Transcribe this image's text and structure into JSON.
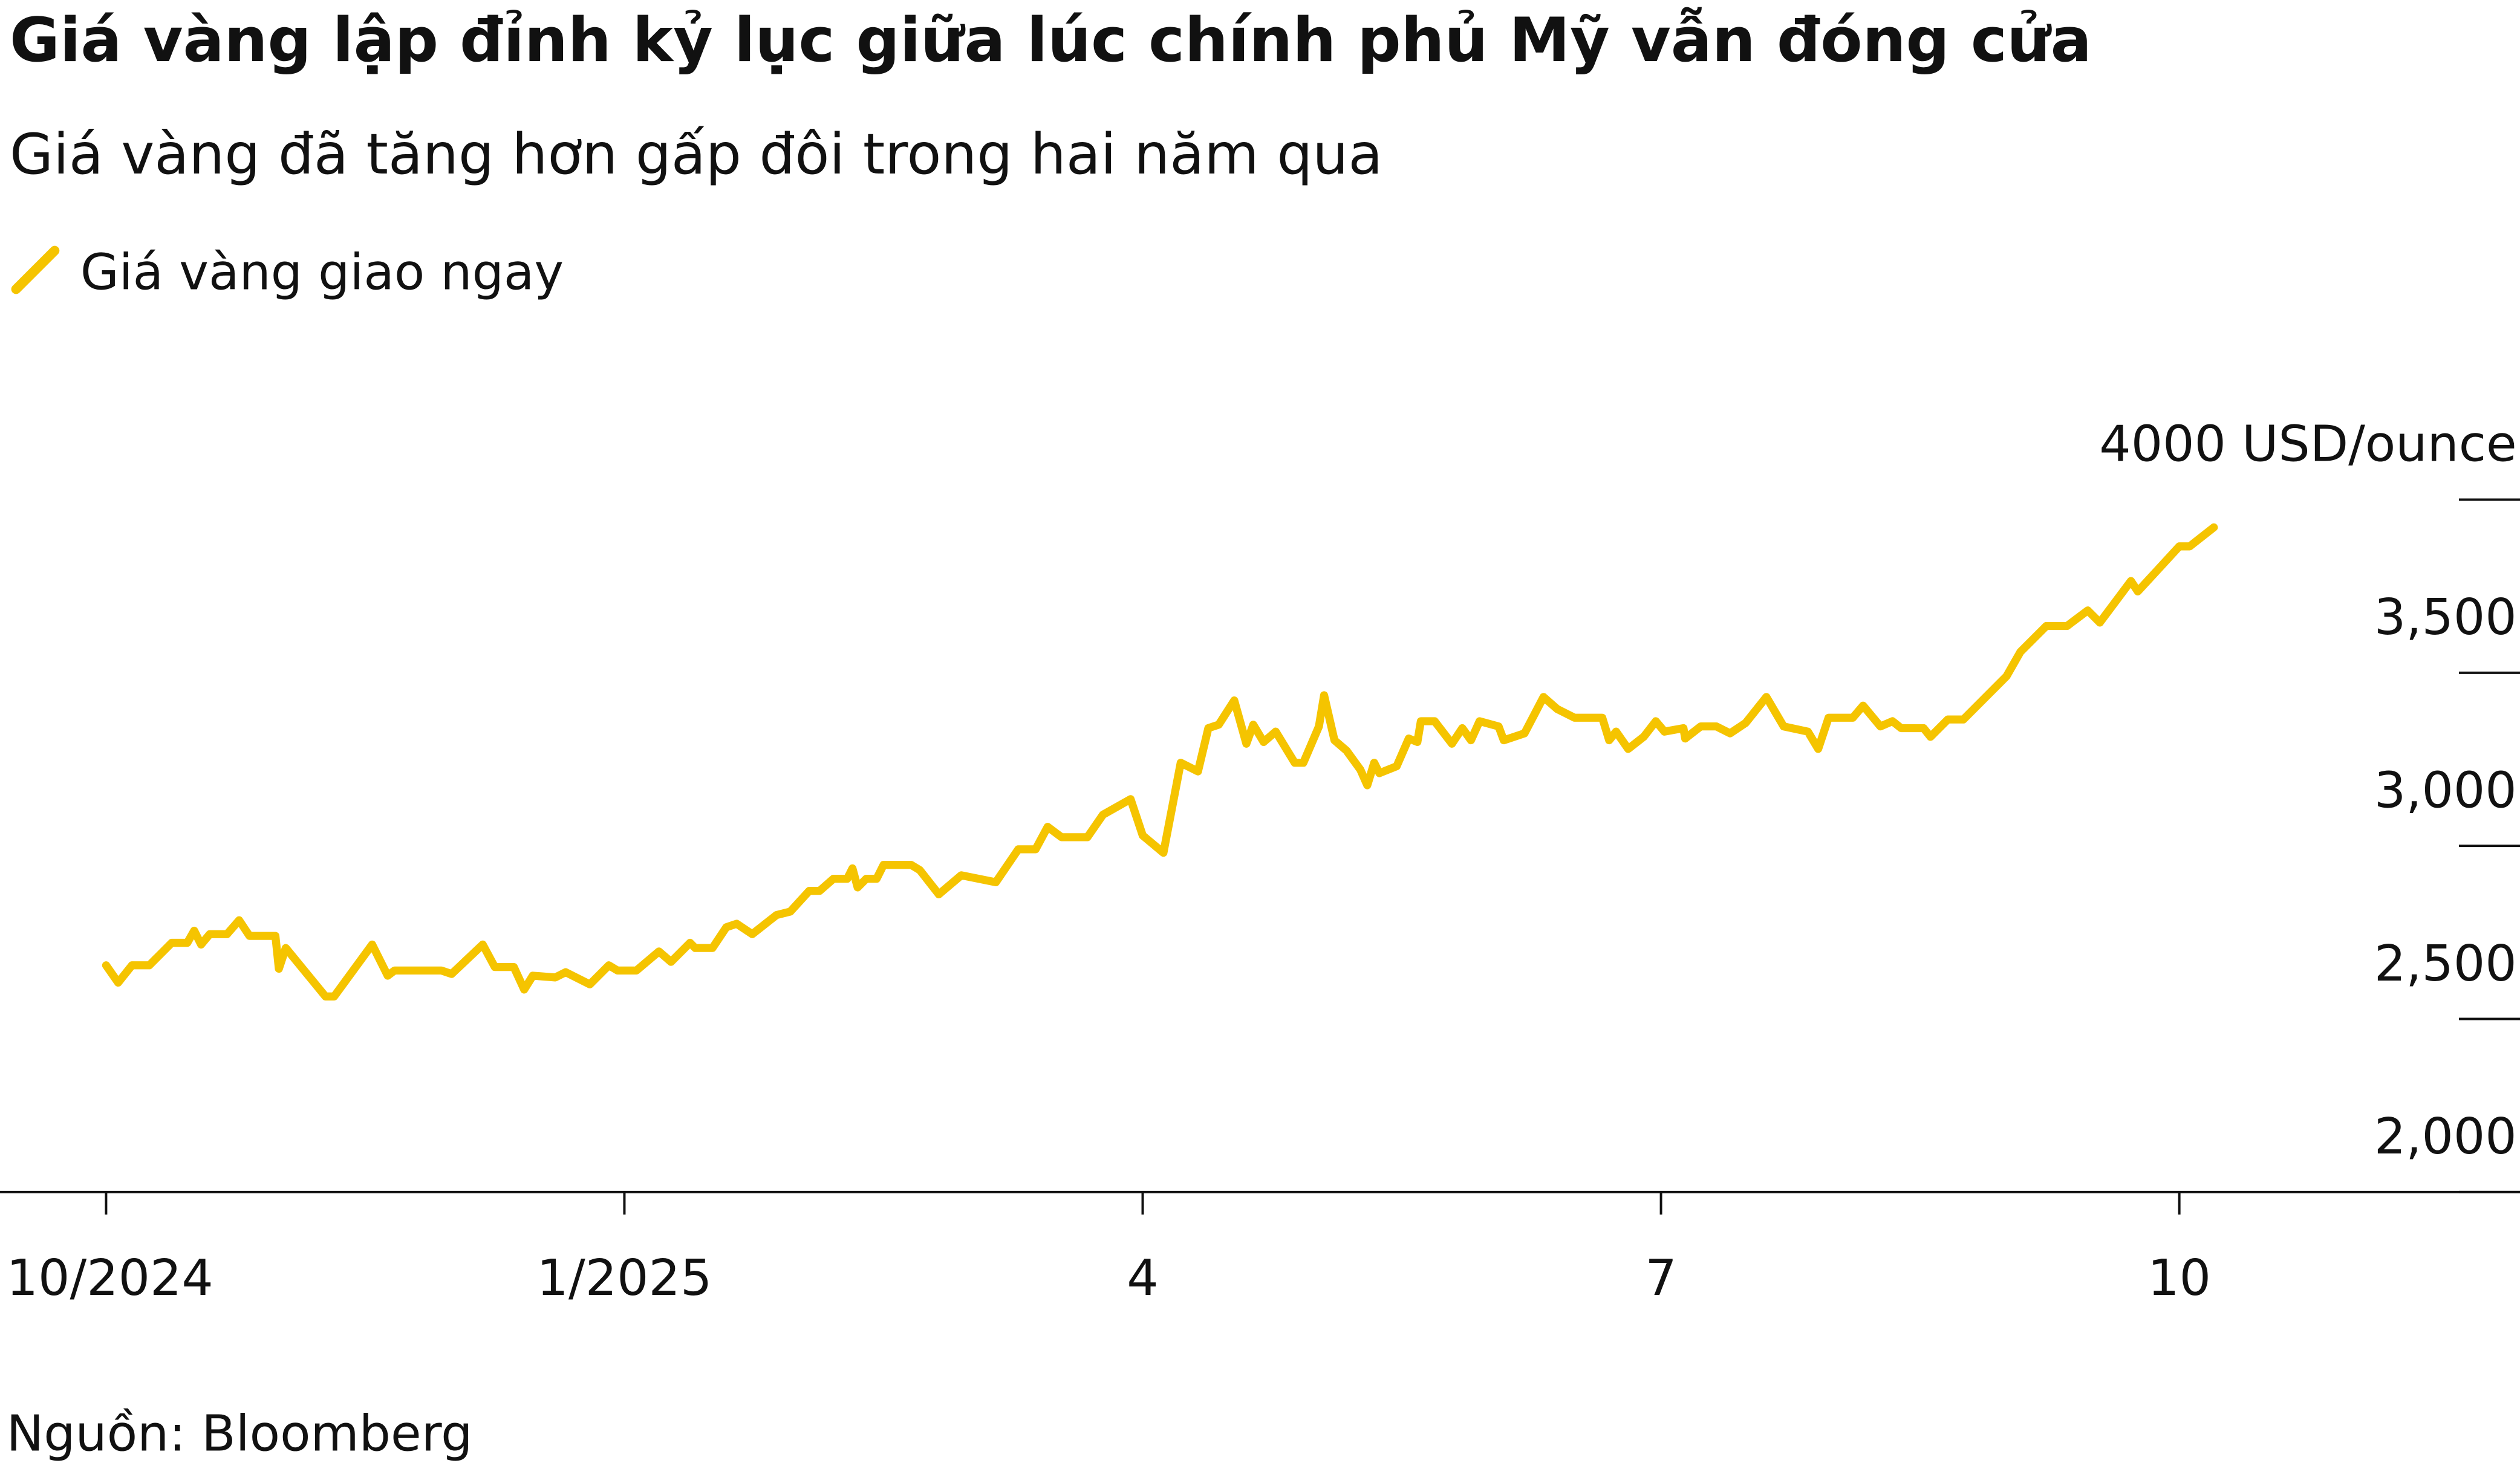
{
  "chart_data": {
    "type": "line",
    "title": "Giá vàng lập đỉnh kỷ lục giữa lúc chính phủ Mỹ vẫn đóng cửa",
    "subtitle": "Giá vàng đã tăng hơn gấp đôi trong hai năm qua",
    "source": "Nguồn: Bloomberg",
    "x": [
      0.0,
      0.07,
      0.15,
      0.25,
      0.38,
      0.47,
      0.51,
      0.55,
      0.6,
      0.7,
      0.77,
      0.83,
      0.98,
      1.0,
      1.04,
      1.27,
      1.32,
      1.54,
      1.63,
      1.67,
      1.94,
      2.0,
      2.18,
      2.25,
      2.36,
      2.42,
      2.47,
      2.6,
      2.66,
      2.8,
      2.91,
      2.96,
      3.07,
      3.2,
      3.27,
      3.38,
      3.41,
      3.51,
      3.59,
      3.65,
      3.74,
      3.88,
      3.96,
      4.07,
      4.13,
      4.21,
      4.29,
      4.32,
      4.35,
      4.4,
      4.46,
      4.5,
      4.66,
      4.71,
      4.82,
      4.95,
      5.15,
      5.28,
      5.38,
      5.45,
      5.53,
      5.68,
      5.77,
      5.93,
      6.0,
      6.12,
      6.22,
      6.32,
      6.38,
      6.44,
      6.53,
      6.6,
      6.64,
      6.7,
      6.77,
      6.88,
      6.93,
      7.02,
      7.05,
      7.11,
      7.18,
      7.26,
      7.3,
      7.34,
      7.37,
      7.47,
      7.54,
      7.59,
      7.61,
      7.69,
      7.79,
      7.85,
      7.9,
      7.95,
      8.06,
      8.09,
      8.21,
      8.32,
      8.4,
      8.5,
      8.66,
      8.7,
      8.74,
      8.81,
      8.9,
      8.97,
      9.02,
      9.13,
      9.14,
      9.23,
      9.32,
      9.4,
      9.49,
      9.61,
      9.71,
      9.85,
      9.91,
      9.97,
      10.11,
      10.17,
      10.27,
      10.34,
      10.39,
      10.52,
      10.56,
      10.66,
      10.75,
      11.0,
      11.08,
      11.23,
      11.35,
      11.47,
      11.54,
      11.72,
      11.76,
      12.0,
      12.06,
      12.2
    ],
    "series": [
      {
        "name": "Giá vàng giao ngay",
        "color": "#f5c400",
        "values": [
          2655,
          2605,
          2655,
          2655,
          2720,
          2720,
          2755,
          2715,
          2745,
          2745,
          2785,
          2740,
          2740,
          2645,
          2705,
          2565,
          2565,
          2715,
          2625,
          2640,
          2640,
          2630,
          2715,
          2650,
          2650,
          2585,
          2625,
          2620,
          2635,
          2600,
          2655,
          2640,
          2640,
          2695,
          2665,
          2720,
          2705,
          2705,
          2765,
          2775,
          2745,
          2800,
          2810,
          2870,
          2870,
          2905,
          2905,
          2935,
          2880,
          2905,
          2905,
          2945,
          2945,
          2930,
          2860,
          2915,
          2895,
          2990,
          2990,
          3055,
          3025,
          3025,
          3090,
          3135,
          3030,
          2980,
          3240,
          3215,
          3340,
          3350,
          3420,
          3295,
          3350,
          3300,
          3330,
          3240,
          3240,
          3345,
          3435,
          3305,
          3275,
          3220,
          3175,
          3240,
          3210,
          3230,
          3310,
          3300,
          3360,
          3360,
          3295,
          3340,
          3305,
          3360,
          3345,
          3305,
          3325,
          3430,
          3395,
          3370,
          3370,
          3305,
          3330,
          3280,
          3315,
          3360,
          3330,
          3340,
          3310,
          3345,
          3345,
          3325,
          3355,
          3430,
          3345,
          3330,
          3280,
          3370,
          3370,
          3405,
          3345,
          3360,
          3340,
          3340,
          3315,
          3365,
          3365,
          3490,
          3560,
          3635,
          3635,
          3680,
          3645,
          3765,
          3735,
          3865,
          3865,
          3920
        ]
      }
    ],
    "xlim": [
      -0.614,
      13.972
    ],
    "xticks": [
      {
        "value": 0,
        "label": "10/2024"
      },
      {
        "value": 3,
        "label": "1/2025"
      },
      {
        "value": 6,
        "label": "4"
      },
      {
        "value": 9,
        "label": "7"
      },
      {
        "value": 12,
        "label": "10"
      }
    ],
    "ylim": [
      2000,
      4000
    ],
    "yticks": [
      {
        "value": 2000,
        "label": "2,000"
      },
      {
        "value": 2500,
        "label": "2,500"
      },
      {
        "value": 3000,
        "label": "3,000"
      },
      {
        "value": 3500,
        "label": "3,500"
      },
      {
        "value": 4000,
        "label": "4000 USD/ounce"
      }
    ]
  }
}
